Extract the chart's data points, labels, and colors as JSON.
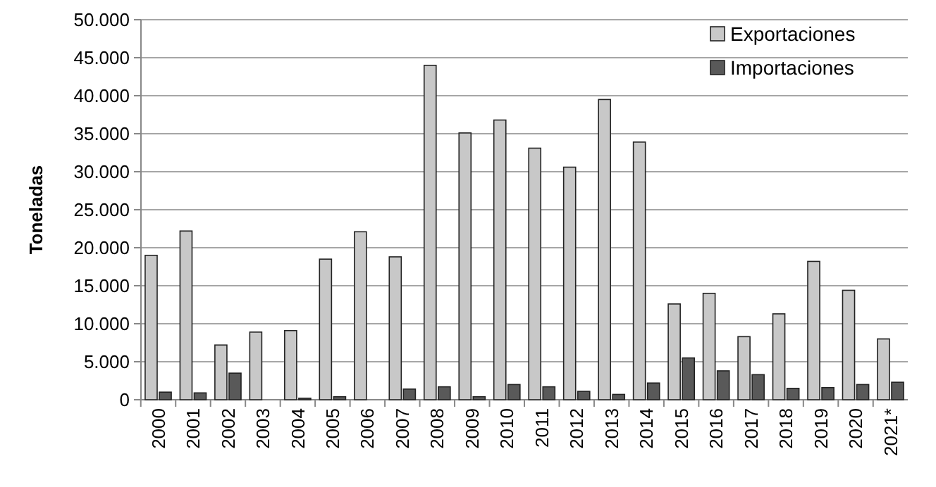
{
  "chart_data": {
    "type": "bar",
    "ylabel": "Toneladas",
    "categories": [
      "2000",
      "2001",
      "2002",
      "2003",
      "2004",
      "2005",
      "2006",
      "2007",
      "2008",
      "2009",
      "2010",
      "2011",
      "2012",
      "2013",
      "2014",
      "2015",
      "2016",
      "2017",
      "2018",
      "2019",
      "2020",
      "2021*"
    ],
    "series": [
      {
        "name": "Exportaciones",
        "color": "#c8c8c8",
        "values": [
          19000,
          22200,
          7200,
          8900,
          9100,
          18500,
          22100,
          18800,
          44000,
          35100,
          36800,
          33100,
          30600,
          39500,
          33900,
          12600,
          14000,
          8300,
          11300,
          18200,
          14400,
          8000
        ]
      },
      {
        "name": "Importaciones",
        "color": "#595959",
        "values": [
          1000,
          900,
          3500,
          null,
          200,
          400,
          null,
          1400,
          1700,
          400,
          2000,
          1700,
          1100,
          700,
          2200,
          5500,
          3800,
          3300,
          1500,
          1600,
          2000,
          2300
        ]
      }
    ],
    "ylim": [
      0,
      50000
    ],
    "yticks": [
      0,
      {
        "value": 5000,
        "label": "5.000"
      },
      {
        "value": 10000,
        "label": "10.000"
      },
      {
        "value": 15000,
        "label": "15.000"
      },
      {
        "value": 20000,
        "label": "20.000"
      },
      {
        "value": 25000,
        "label": "25.000"
      },
      {
        "value": 30000,
        "label": "30.000"
      },
      {
        "value": 35000,
        "label": "35.000"
      },
      {
        "value": 40000,
        "label": "40.000"
      },
      {
        "value": 45000,
        "label": "45.000"
      },
      {
        "value": 50000,
        "label": "50.000"
      }
    ],
    "grid": "y",
    "legend": "top right"
  }
}
